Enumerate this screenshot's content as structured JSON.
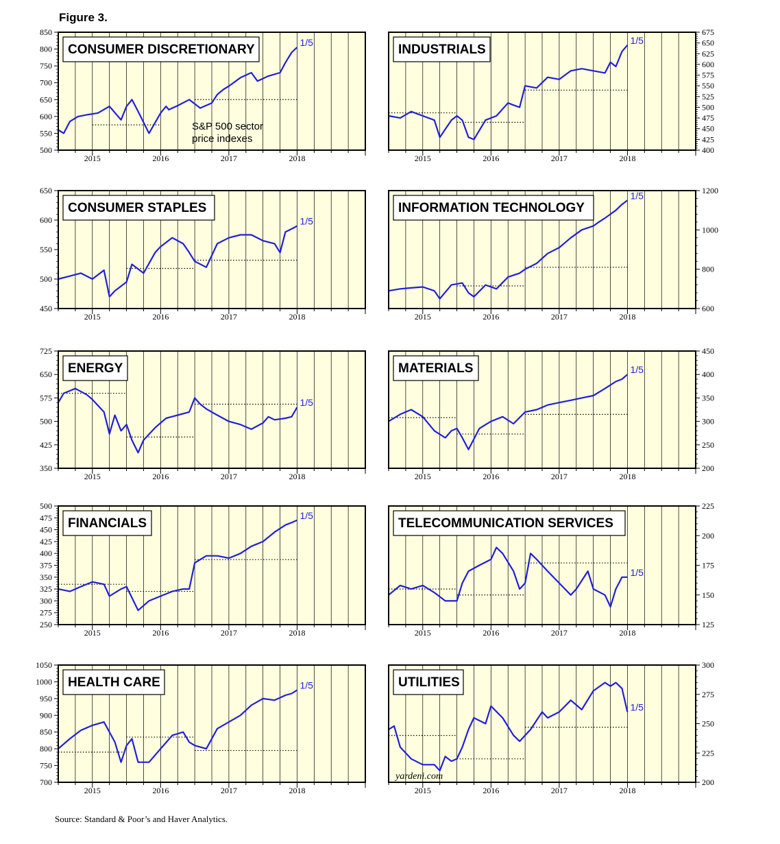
{
  "figure_title": "Figure 3.",
  "source": "Source: Standard & Poor’s and Haver Analytics.",
  "line_color": "#1f1fd8",
  "plot_background": "#ffffe0",
  "chart_data": [
    {
      "type": "line",
      "title": "CONSUMER DISCRETIONARY",
      "ylim": [
        500,
        850
      ],
      "yticks": [
        500,
        550,
        600,
        650,
        700,
        750,
        800,
        850
      ],
      "yaxis_side": "left",
      "x_range": [
        2014.5,
        2019.0
      ],
      "xticks_labels": [
        "2015",
        "2016",
        "2017",
        "2018"
      ],
      "end_label": "1/5",
      "note": [
        "S&P 500 sector",
        "price indexes"
      ],
      "reference_lines": [
        {
          "value": 575,
          "from": 2015.0,
          "to": 2016.0
        },
        {
          "value": 650,
          "from": 2016.5,
          "to": 2018.0
        }
      ],
      "series": [
        {
          "x": [
            2014.5,
            2014.58,
            2014.67,
            2014.79,
            2014.92,
            2015.08,
            2015.25,
            2015.42,
            2015.5,
            2015.58,
            2015.67,
            2015.83,
            2016.0,
            2016.08,
            2016.12,
            2016.25,
            2016.42,
            2016.58,
            2016.75,
            2016.83,
            2016.92,
            2017.0,
            2017.17,
            2017.33,
            2017.42,
            2017.58,
            2017.75,
            2017.83,
            2017.92,
            2018.0
          ],
          "y": [
            560,
            550,
            585,
            600,
            605,
            610,
            630,
            590,
            630,
            650,
            615,
            550,
            610,
            630,
            620,
            632,
            650,
            625,
            640,
            665,
            680,
            690,
            715,
            730,
            705,
            720,
            730,
            760,
            790,
            805
          ]
        }
      ]
    },
    {
      "type": "line",
      "title": "INDUSTRIALS",
      "ylim": [
        400,
        675
      ],
      "yticks": [
        400,
        425,
        450,
        475,
        500,
        525,
        550,
        575,
        600,
        625,
        650,
        675
      ],
      "yaxis_side": "right",
      "x_range": [
        2014.5,
        2019.0
      ],
      "xticks_labels": [
        "2015",
        "2016",
        "2017",
        "2018"
      ],
      "end_label": "1/5",
      "reference_lines": [
        {
          "value": 487,
          "from": 2014.5,
          "to": 2015.5
        },
        {
          "value": 465,
          "from": 2015.5,
          "to": 2016.5
        },
        {
          "value": 540,
          "from": 2016.5,
          "to": 2018.0
        }
      ],
      "series": [
        {
          "x": [
            2014.5,
            2014.67,
            2014.83,
            2015.0,
            2015.17,
            2015.25,
            2015.42,
            2015.5,
            2015.58,
            2015.67,
            2015.75,
            2015.92,
            2016.08,
            2016.25,
            2016.33,
            2016.42,
            2016.5,
            2016.67,
            2016.83,
            2017.0,
            2017.17,
            2017.33,
            2017.5,
            2017.67,
            2017.75,
            2017.83,
            2017.92,
            2018.0
          ],
          "y": [
            480,
            475,
            490,
            480,
            470,
            430,
            470,
            480,
            470,
            430,
            425,
            470,
            480,
            510,
            505,
            500,
            550,
            545,
            570,
            565,
            585,
            590,
            585,
            580,
            605,
            595,
            630,
            645
          ]
        }
      ]
    },
    {
      "type": "line",
      "title": "CONSUMER STAPLES",
      "ylim": [
        450,
        650
      ],
      "yticks": [
        450,
        500,
        550,
        600,
        650
      ],
      "yaxis_side": "left",
      "x_range": [
        2014.5,
        2019.0
      ],
      "xticks_labels": [
        "2015",
        "2016",
        "2017",
        "2018"
      ],
      "end_label": "1/5",
      "reference_lines": [
        {
          "value": 518,
          "from": 2015.5,
          "to": 2016.5
        },
        {
          "value": 532,
          "from": 2016.5,
          "to": 2018.0
        }
      ],
      "series": [
        {
          "x": [
            2014.5,
            2014.67,
            2014.83,
            2015.0,
            2015.17,
            2015.25,
            2015.33,
            2015.5,
            2015.58,
            2015.75,
            2015.92,
            2016.0,
            2016.17,
            2016.33,
            2016.42,
            2016.5,
            2016.67,
            2016.83,
            2017.0,
            2017.17,
            2017.33,
            2017.5,
            2017.67,
            2017.75,
            2017.83,
            2017.92,
            2018.0
          ],
          "y": [
            500,
            505,
            510,
            500,
            515,
            470,
            480,
            495,
            525,
            510,
            545,
            555,
            570,
            560,
            545,
            530,
            520,
            560,
            570,
            575,
            575,
            565,
            560,
            545,
            580,
            585,
            590
          ]
        }
      ]
    },
    {
      "type": "line",
      "title": "INFORMATION TECHNOLOGY",
      "ylim": [
        600,
        1200
      ],
      "yticks": [
        600,
        800,
        1000,
        1200
      ],
      "yaxis_side": "right",
      "x_range": [
        2014.5,
        2019.0
      ],
      "xticks_labels": [
        "2015",
        "2016",
        "2017",
        "2018"
      ],
      "end_label": "1/5",
      "reference_lines": [
        {
          "value": 715,
          "from": 2015.5,
          "to": 2016.5
        },
        {
          "value": 810,
          "from": 2016.5,
          "to": 2018.0
        }
      ],
      "series": [
        {
          "x": [
            2014.5,
            2014.67,
            2014.83,
            2015.0,
            2015.17,
            2015.25,
            2015.42,
            2015.58,
            2015.67,
            2015.75,
            2015.92,
            2016.08,
            2016.25,
            2016.42,
            2016.5,
            2016.67,
            2016.83,
            2017.0,
            2017.17,
            2017.33,
            2017.5,
            2017.58,
            2017.67,
            2017.83,
            2017.92,
            2018.0
          ],
          "y": [
            690,
            700,
            705,
            710,
            690,
            650,
            720,
            730,
            680,
            660,
            720,
            700,
            760,
            780,
            800,
            830,
            880,
            910,
            960,
            1000,
            1020,
            1040,
            1060,
            1100,
            1130,
            1150
          ]
        }
      ]
    },
    {
      "type": "line",
      "title": "ENERGY",
      "ylim": [
        350,
        725
      ],
      "yticks": [
        350,
        425,
        500,
        575,
        650,
        725
      ],
      "yaxis_side": "left",
      "x_range": [
        2014.5,
        2019.0
      ],
      "xticks_labels": [
        "2015",
        "2016",
        "2017",
        "2018"
      ],
      "end_label": "1/5",
      "reference_lines": [
        {
          "value": 590,
          "from": 2014.5,
          "to": 2015.5
        },
        {
          "value": 450,
          "from": 2015.5,
          "to": 2016.5
        },
        {
          "value": 555,
          "from": 2016.5,
          "to": 2018.0
        }
      ],
      "series": [
        {
          "x": [
            2014.5,
            2014.58,
            2014.75,
            2014.92,
            2015.0,
            2015.17,
            2015.25,
            2015.33,
            2015.42,
            2015.5,
            2015.58,
            2015.67,
            2015.75,
            2015.92,
            2016.08,
            2016.25,
            2016.42,
            2016.5,
            2016.58,
            2016.67,
            2016.83,
            2017.0,
            2017.17,
            2017.33,
            2017.5,
            2017.58,
            2017.67,
            2017.83,
            2017.92,
            2018.0
          ],
          "y": [
            560,
            590,
            605,
            585,
            570,
            530,
            460,
            520,
            470,
            490,
            440,
            400,
            440,
            480,
            510,
            520,
            530,
            575,
            555,
            540,
            520,
            500,
            490,
            475,
            495,
            515,
            505,
            510,
            515,
            545
          ]
        }
      ]
    },
    {
      "type": "line",
      "title": "MATERIALS",
      "ylim": [
        200,
        450
      ],
      "yticks": [
        200,
        250,
        300,
        350,
        400,
        450
      ],
      "yaxis_side": "right",
      "x_range": [
        2014.5,
        2019.0
      ],
      "xticks_labels": [
        "2015",
        "2016",
        "2017",
        "2018"
      ],
      "end_label": "1/5",
      "reference_lines": [
        {
          "value": 308,
          "from": 2014.5,
          "to": 2015.5
        },
        {
          "value": 273,
          "from": 2015.5,
          "to": 2016.5
        },
        {
          "value": 315,
          "from": 2016.5,
          "to": 2018.0
        }
      ],
      "series": [
        {
          "x": [
            2014.5,
            2014.67,
            2014.83,
            2015.0,
            2015.17,
            2015.33,
            2015.42,
            2015.5,
            2015.58,
            2015.67,
            2015.83,
            2016.0,
            2016.17,
            2016.33,
            2016.5,
            2016.67,
            2016.83,
            2017.0,
            2017.17,
            2017.33,
            2017.5,
            2017.67,
            2017.83,
            2017.92,
            2018.0
          ],
          "y": [
            300,
            315,
            325,
            310,
            280,
            265,
            280,
            285,
            265,
            240,
            285,
            300,
            310,
            295,
            320,
            325,
            335,
            340,
            345,
            350,
            355,
            370,
            385,
            390,
            400
          ]
        }
      ]
    },
    {
      "type": "line",
      "title": "FINANCIALS",
      "ylim": [
        250,
        500
      ],
      "yticks": [
        250,
        275,
        300,
        325,
        350,
        375,
        400,
        425,
        450,
        475,
        500
      ],
      "yaxis_side": "left",
      "x_range": [
        2014.5,
        2019.0
      ],
      "xticks_labels": [
        "2015",
        "2016",
        "2017",
        "2018"
      ],
      "end_label": "1/5",
      "reference_lines": [
        {
          "value": 335,
          "from": 2014.5,
          "to": 2015.5
        },
        {
          "value": 320,
          "from": 2015.5,
          "to": 2016.5
        },
        {
          "value": 387,
          "from": 2016.5,
          "to": 2018.0
        }
      ],
      "series": [
        {
          "x": [
            2014.5,
            2014.67,
            2014.83,
            2015.0,
            2015.17,
            2015.25,
            2015.42,
            2015.5,
            2015.67,
            2015.83,
            2016.0,
            2016.17,
            2016.33,
            2016.42,
            2016.5,
            2016.67,
            2016.83,
            2017.0,
            2017.17,
            2017.33,
            2017.5,
            2017.67,
            2017.83,
            2017.92,
            2018.0
          ],
          "y": [
            325,
            320,
            330,
            340,
            335,
            310,
            325,
            330,
            280,
            300,
            310,
            320,
            325,
            325,
            380,
            395,
            395,
            390,
            400,
            415,
            425,
            445,
            460,
            465,
            470
          ]
        }
      ]
    },
    {
      "type": "line",
      "title": "TELECOMMUNICATION SERVICES",
      "ylim": [
        125,
        225
      ],
      "yticks": [
        125,
        150,
        175,
        200,
        225
      ],
      "yaxis_side": "right",
      "x_range": [
        2014.5,
        2019.0
      ],
      "xticks_labels": [
        "2015",
        "2016",
        "2017",
        "2018"
      ],
      "end_label": "1/5",
      "reference_lines": [
        {
          "value": 155,
          "from": 2014.5,
          "to": 2015.5
        },
        {
          "value": 150,
          "from": 2015.5,
          "to": 2016.5
        },
        {
          "value": 177,
          "from": 2016.5,
          "to": 2018.0
        }
      ],
      "series": [
        {
          "x": [
            2014.5,
            2014.67,
            2014.83,
            2015.0,
            2015.17,
            2015.33,
            2015.5,
            2015.58,
            2015.67,
            2015.83,
            2016.0,
            2016.08,
            2016.17,
            2016.33,
            2016.42,
            2016.5,
            2016.58,
            2016.67,
            2016.83,
            2017.0,
            2017.17,
            2017.25,
            2017.42,
            2017.5,
            2017.67,
            2017.75,
            2017.83,
            2017.92,
            2018.0
          ],
          "y": [
            150,
            158,
            155,
            158,
            152,
            145,
            145,
            160,
            170,
            175,
            180,
            190,
            185,
            170,
            155,
            160,
            185,
            180,
            170,
            160,
            150,
            155,
            170,
            155,
            150,
            140,
            155,
            165,
            165
          ]
        }
      ]
    },
    {
      "type": "line",
      "title": "HEALTH CARE",
      "ylim": [
        700,
        1050
      ],
      "yticks": [
        700,
        750,
        800,
        850,
        900,
        950,
        1000,
        1050
      ],
      "yaxis_side": "left",
      "x_range": [
        2014.5,
        2019.0
      ],
      "xticks_labels": [
        "2015",
        "2016",
        "2017",
        "2018"
      ],
      "end_label": "1/5",
      "reference_lines": [
        {
          "value": 790,
          "from": 2014.5,
          "to": 2015.5
        },
        {
          "value": 835,
          "from": 2015.5,
          "to": 2016.5
        },
        {
          "value": 795,
          "from": 2016.5,
          "to": 2018.0
        }
      ],
      "series": [
        {
          "x": [
            2014.5,
            2014.67,
            2014.83,
            2015.0,
            2015.17,
            2015.33,
            2015.42,
            2015.5,
            2015.58,
            2015.67,
            2015.83,
            2016.0,
            2016.17,
            2016.33,
            2016.42,
            2016.5,
            2016.67,
            2016.83,
            2017.0,
            2017.17,
            2017.33,
            2017.5,
            2017.67,
            2017.83,
            2017.92,
            2018.0
          ],
          "y": [
            800,
            830,
            855,
            870,
            880,
            820,
            760,
            810,
            830,
            760,
            760,
            800,
            840,
            850,
            820,
            810,
            800,
            860,
            880,
            900,
            930,
            950,
            945,
            960,
            965,
            975
          ]
        }
      ]
    },
    {
      "type": "line",
      "title": "UTILITIES",
      "ylim": [
        200,
        300
      ],
      "yticks": [
        200,
        225,
        250,
        275,
        300
      ],
      "yaxis_side": "right",
      "x_range": [
        2014.5,
        2019.0
      ],
      "xticks_labels": [
        "2015",
        "2016",
        "2017",
        "2018"
      ],
      "end_label": "1/5",
      "watermark": "yardeni.com",
      "reference_lines": [
        {
          "value": 240,
          "from": 2014.5,
          "to": 2015.5
        },
        {
          "value": 220,
          "from": 2015.5,
          "to": 2016.5
        },
        {
          "value": 247,
          "from": 2016.5,
          "to": 2018.0
        }
      ],
      "series": [
        {
          "x": [
            2014.5,
            2014.58,
            2014.67,
            2014.83,
            2015.0,
            2015.17,
            2015.25,
            2015.33,
            2015.42,
            2015.5,
            2015.58,
            2015.67,
            2015.75,
            2015.92,
            2016.0,
            2016.17,
            2016.33,
            2016.42,
            2016.58,
            2016.75,
            2016.83,
            2017.0,
            2017.17,
            2017.33,
            2017.5,
            2017.67,
            2017.75,
            2017.83,
            2017.92,
            2018.0
          ],
          "y": [
            245,
            248,
            230,
            220,
            215,
            215,
            210,
            222,
            218,
            220,
            230,
            245,
            255,
            250,
            265,
            255,
            240,
            235,
            245,
            260,
            255,
            260,
            270,
            262,
            278,
            285,
            282,
            285,
            280,
            260
          ]
        }
      ]
    }
  ]
}
